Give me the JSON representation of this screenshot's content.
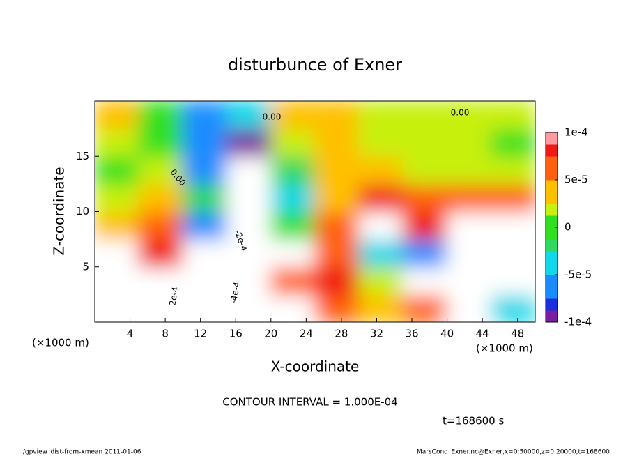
{
  "chart_data": {
    "type": "contour",
    "title": "disturbunce of Exner",
    "x_label": "X-coordinate",
    "y_label": "Z-coordinate",
    "x_unit": "(×1000 m)",
    "y_unit": "(×1000 m)",
    "xlim": [
      0,
      50
    ],
    "ylim": [
      0,
      20
    ],
    "xticks": [
      4,
      8,
      12,
      16,
      20,
      24,
      28,
      32,
      36,
      40,
      44,
      48
    ],
    "yticks": [
      5,
      10,
      15
    ],
    "x": [
      2.5,
      7.5,
      12.5,
      17.5,
      22.5,
      27.5,
      32.5,
      37.5,
      42.5,
      47.5
    ],
    "z": [
      1.25,
      3.75,
      6.25,
      8.75,
      11.25,
      13.75,
      16.25,
      18.75
    ],
    "values": [
      [
        0.00015,
        0.00015,
        -0.0002,
        -0.0003,
        0.00015,
        6e-05,
        3e-05,
        6e-05,
        -0.00015,
        -5e-05
      ],
      [
        0.00015,
        0.00013,
        -0.0002,
        -0.0004,
        5e-05,
        8e-05,
        2e-05,
        0.00013,
        -0.0002,
        0.00012
      ],
      [
        0.00012,
        8e-05,
        -0.00015,
        -0.0003,
        0.00011,
        5e-05,
        -4e-05,
        -6e-05,
        -0.00015,
        0.00015
      ],
      [
        4e-05,
        6e-05,
        -6e-05,
        -0.0002,
        0,
        6e-05,
        0.00012,
        8e-05,
        0.00012,
        0.00012
      ],
      [
        1e-05,
        3e-05,
        -2e-05,
        -0.00015,
        -4e-05,
        4e-05,
        7e-05,
        5e-05,
        6e-05,
        5e-05
      ],
      [
        0,
        1e-05,
        -6e-05,
        -0.00012,
        -2e-05,
        3e-05,
        4e-05,
        2e-05,
        2e-05,
        1e-05
      ],
      [
        1e-05,
        0,
        -6e-05,
        -9e-05,
        2e-05,
        3e-05,
        2e-05,
        1e-05,
        1e-05,
        0
      ],
      [
        3e-05,
        0,
        -7e-05,
        -5e-05,
        3e-05,
        4e-05,
        2e-05,
        1e-05,
        1e-05,
        1e-05
      ]
    ],
    "clim": [
      -0.0001,
      0.0001
    ],
    "cticks": [
      {
        "value": 0.0001,
        "label": "1e-4"
      },
      {
        "value": 5e-05,
        "label": "5e-5"
      },
      0,
      {
        "value": -5e-05,
        "label": "-5e-5"
      },
      {
        "value": -0.0001,
        "label": "-1e-4"
      }
    ],
    "contour_labels": [
      "0.00",
      "0.00",
      "0.00",
      "2e-4",
      "-2e-4",
      "-4e-4"
    ],
    "contour_interval": "CONTOUR INTERVAL = 1.000E-04",
    "time": "t=168600 s",
    "footer_left": "./gpview_dist-from-xmean  2011-01-06",
    "footer_right": "MarsCond_Exner.nc@Exner,x=0:50000,z=0:20000,t=168600"
  }
}
